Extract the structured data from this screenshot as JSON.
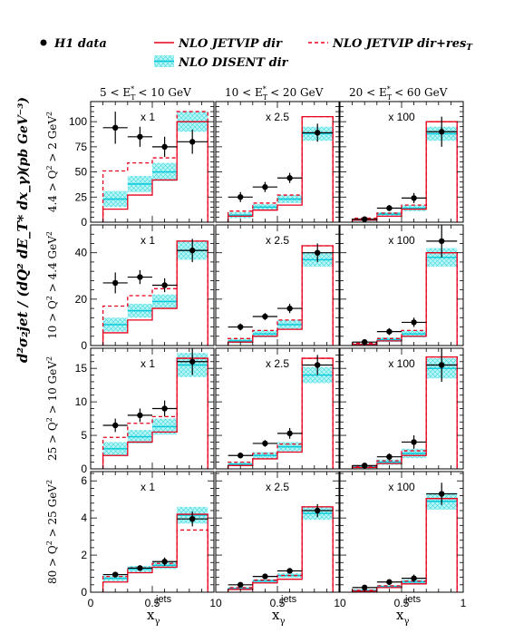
{
  "legend": {
    "h1_data": "H1 data",
    "jetvip_dir": "NLO JETVIP dir",
    "jetvip_res": "NLO JETVIP dir+res",
    "jetvip_res_sub": "T",
    "disent_dir": "NLO DISENT dir"
  },
  "colors": {
    "data": "#000000",
    "jetvip_dir": "#e8001c",
    "jetvip_res": "#e8001c",
    "disent_fill": "#8ff0f0",
    "disent_edge": "#00c8d8"
  },
  "y_title": "d²σ₂jet / (dQ² dE_T* dx_γ)",
  "y_unit": "(pb GeV⁻³)",
  "columns": [
    {
      "label": "5 < E",
      "sup": "*",
      "sub": "T",
      "tail": "< 10 GeV"
    },
    {
      "label": "10 < E",
      "sup": "*",
      "sub": "T",
      "tail": "< 20 GeV"
    },
    {
      "label": "20 < E",
      "sup": "*",
      "sub": "T",
      "tail": "< 60 GeV"
    }
  ],
  "rows": [
    {
      "label": "4.4 > Q",
      "tail": " > 2 GeV"
    },
    {
      "label": "10 > Q",
      "tail": " > 4.4 GeV"
    },
    {
      "label": "25 > Q",
      "tail": " > 10 GeV"
    },
    {
      "label": "80 > Q",
      "tail": " > 25 GeV"
    }
  ],
  "scale_labels": [
    "x 1",
    "x 2.5",
    "x 100"
  ],
  "x_axis": {
    "ticks": [
      "0",
      "0.5",
      "1"
    ],
    "bottom_tick_labels": [
      "0",
      "0.5",
      "10",
      "0.5",
      "10",
      "0.5",
      "1"
    ],
    "label_main": "x",
    "label_sub": "γ",
    "label_jets": "jets"
  },
  "chart_data": {
    "type": "histogram-panels",
    "bins": [
      0.1,
      0.3,
      0.5,
      0.7,
      0.95
    ],
    "xlim": [
      0,
      1
    ],
    "x_points": [
      0.2,
      0.4,
      0.6,
      0.825
    ],
    "panels": [
      {
        "row": 0,
        "ylim": [
          0,
          120
        ],
        "yticks": [
          0,
          25,
          50,
          75,
          100
        ],
        "columns": [
          {
            "data": [
              94,
              85,
              75,
              80
            ],
            "err": [
              16,
              10,
              10,
              12
            ],
            "jetvip_dir": [
              13,
              27,
              42,
              100
            ],
            "jetvip_res": [
              51,
              59,
              64,
              110
            ],
            "disent": [
              23,
              38,
              50,
              100
            ],
            "disent_err": [
              8,
              8,
              9,
              10
            ]
          },
          {
            "data": [
              25,
              35,
              44,
              89
            ],
            "err": [
              5,
              5,
              5,
              9
            ],
            "jetvip_dir": [
              6,
              12,
              17,
              105
            ],
            "jetvip_res": [
              11,
              19,
              27,
              105
            ],
            "disent": [
              7,
              15,
              23,
              88
            ],
            "disent_err": [
              3,
              3,
              4,
              7
            ]
          },
          {
            "data": [
              3,
              14,
              24,
              90
            ],
            "err": [
              2,
              3,
              5,
              15
            ],
            "jetvip_dir": [
              2,
              6,
              13,
              100
            ],
            "jetvip_res": [
              4,
              9,
              17,
              100
            ],
            "disent": [
              2,
              8,
              14,
              88
            ],
            "disent_err": [
              1,
              2,
              3,
              7
            ]
          }
        ]
      },
      {
        "row": 1,
        "ylim": [
          0,
          52
        ],
        "yticks": [
          0,
          20,
          40
        ],
        "columns": [
          {
            "data": [
              27,
              29.5,
              26,
              41
            ],
            "err": [
              4.5,
              3,
              3,
              5
            ],
            "jetvip_dir": [
              5.5,
              11,
              16,
              45
            ],
            "jetvip_res": [
              17,
              21.5,
              24.5,
              45
            ],
            "disent": [
              9,
              15,
              19,
              41
            ],
            "disent_err": [
              3,
              3,
              3,
              4
            ]
          },
          {
            "data": [
              8,
              12.5,
              16,
              40
            ],
            "err": [
              1.5,
              1.5,
              2,
              4
            ],
            "jetvip_dir": [
              1.5,
              4,
              7,
              43
            ],
            "jetvip_res": [
              3,
              6.5,
              11,
              43
            ],
            "disent": [
              2,
              5,
              9,
              37
            ],
            "disent_err": [
              1,
              1.5,
              2,
              3
            ]
          },
          {
            "data": [
              1.5,
              6,
              10,
              45
            ],
            "err": [
              1,
              1.5,
              2,
              7
            ],
            "jetvip_dir": [
              0.5,
              2,
              4,
              40
            ],
            "jetvip_res": [
              1,
              3,
              6.5,
              40
            ],
            "disent": [
              0.5,
              2.5,
              5,
              38
            ],
            "disent_err": [
              0.5,
              1,
              1.5,
              4
            ]
          }
        ]
      },
      {
        "row": 2,
        "ylim": [
          0,
          18
        ],
        "yticks": [
          0,
          5,
          10,
          15
        ],
        "columns": [
          {
            "data": [
              6.5,
              8,
              9,
              16
            ],
            "err": [
              1,
              1,
              1.2,
              2
            ],
            "jetvip_dir": [
              2,
              4,
              5.5,
              16.5
            ],
            "jetvip_res": [
              4.7,
              6.8,
              7.8,
              16.5
            ],
            "disent": [
              3,
              4.8,
              6.3,
              15.5
            ],
            "disent_err": [
              1,
              1,
              1.2,
              1.8
            ]
          },
          {
            "data": [
              2,
              3.8,
              5.3,
              15.5
            ],
            "err": [
              0.4,
              0.5,
              0.8,
              1.5
            ],
            "jetvip_dir": [
              0.5,
              1.5,
              2.5,
              16.5
            ],
            "jetvip_res": [
              1,
              2.3,
              3.7,
              16.5
            ],
            "disent": [
              0.7,
              2,
              3.3,
              14
            ],
            "disent_err": [
              0.3,
              0.5,
              0.7,
              1.2
            ]
          },
          {
            "data": [
              0.5,
              1.8,
              4,
              15.5
            ],
            "err": [
              0.3,
              0.5,
              1,
              2.5
            ],
            "jetvip_dir": [
              0.2,
              0.8,
              2,
              16.7
            ],
            "jetvip_res": [
              0.4,
              1.2,
              2.7,
              16.7
            ],
            "disent": [
              0.3,
              1,
              2.3,
              15
            ],
            "disent_err": [
              0.2,
              0.4,
              0.7,
              1.5
            ]
          }
        ]
      },
      {
        "row": 3,
        "ylim": [
          0,
          6.5
        ],
        "yticks": [
          0,
          2,
          4,
          6
        ],
        "columns": [
          {
            "data": [
              0.95,
              1.3,
              1.65,
              3.95
            ],
            "err": [
              0.12,
              0.15,
              0.22,
              0.4
            ],
            "jetvip_dir": [
              0.55,
              1.05,
              1.35,
              4.2
            ],
            "jetvip_res": [
              0.85,
              1.3,
              1.55,
              3.35
            ],
            "disent": [
              0.75,
              1.25,
              1.45,
              4.15
            ],
            "disent_err": [
              0.15,
              0.17,
              0.2,
              0.45
            ]
          },
          {
            "data": [
              0.4,
              0.85,
              1.15,
              4.4
            ],
            "err": [
              0.08,
              0.1,
              0.12,
              0.35
            ],
            "jetvip_dir": [
              0.15,
              0.5,
              0.7,
              4.6
            ],
            "jetvip_res": [
              0.25,
              0.65,
              0.9,
              4.6
            ],
            "disent": [
              0.2,
              0.6,
              0.9,
              4.25
            ],
            "disent_err": [
              0.06,
              0.1,
              0.12,
              0.35
            ]
          },
          {
            "data": [
              0.25,
              0.55,
              0.75,
              5.3
            ],
            "err": [
              0.08,
              0.12,
              0.2,
              0.6
            ],
            "jetvip_dir": [
              0.05,
              0.25,
              0.45,
              5.05
            ],
            "jetvip_res": [
              0.1,
              0.35,
              0.6,
              5.05
            ],
            "disent": [
              0.1,
              0.3,
              0.55,
              4.9
            ],
            "disent_err": [
              0.04,
              0.08,
              0.12,
              0.45
            ]
          }
        ]
      }
    ]
  }
}
